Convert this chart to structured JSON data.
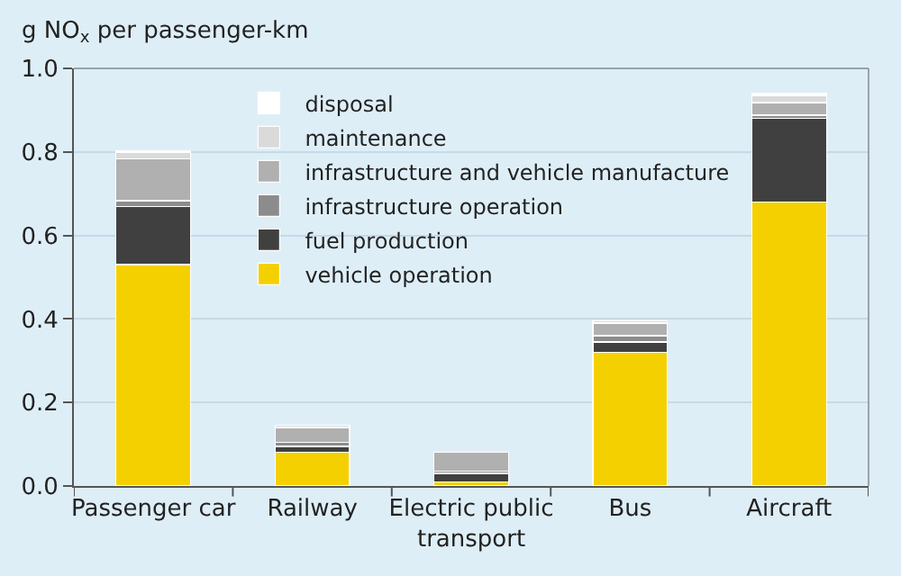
{
  "chart_data": {
    "type": "bar",
    "stacked": true,
    "ylabel": "g NO$_{x}$ per passenger-km",
    "categories": [
      "Passenger car",
      "Railway",
      "Electric public transport",
      "Bus",
      "Aircraft"
    ],
    "series": [
      {
        "name": "vehicle operation",
        "color": "#f5d000",
        "values": [
          0.53,
          0.08,
          0.01,
          0.32,
          0.68
        ]
      },
      {
        "name": "fuel production",
        "color": "#404040",
        "values": [
          0.14,
          0.015,
          0.02,
          0.025,
          0.2
        ]
      },
      {
        "name": "infrastructure operation",
        "color": "#8c8c8c",
        "values": [
          0.013,
          0.01,
          0.005,
          0.015,
          0.008
        ]
      },
      {
        "name": "infrastructure and vehicle manufacture",
        "color": "#b0b0b0",
        "values": [
          0.1,
          0.035,
          0.045,
          0.03,
          0.03
        ]
      },
      {
        "name": "maintenance",
        "color": "#dadada",
        "values": [
          0.015,
          0.005,
          0.0,
          0.005,
          0.017
        ]
      },
      {
        "name": "disposal",
        "color": "#ffffff",
        "values": [
          0.005,
          0.0,
          0.0,
          0.0,
          0.005
        ]
      }
    ],
    "ylim": [
      0,
      1.0
    ],
    "yticks": [
      {
        "value": 0,
        "label": "0.0"
      },
      {
        "value": 0.2,
        "label": "0.2"
      },
      {
        "value": 0.4,
        "label": "0.4"
      },
      {
        "value": 0.6,
        "label": "0.6"
      },
      {
        "value": 0.8,
        "label": "0.8"
      },
      {
        "value": 1.0,
        "label": "1.0"
      }
    ],
    "grid": "y",
    "legend": "top left"
  }
}
